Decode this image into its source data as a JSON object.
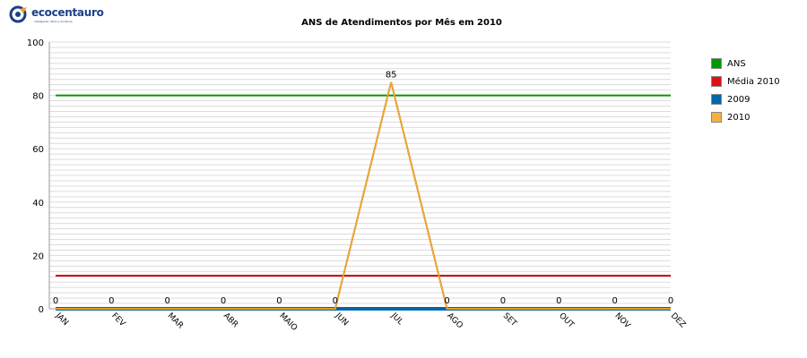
{
  "logo": {
    "text": "ecocentauro",
    "tagline": "inteligente, ética e moderna"
  },
  "chart_data": {
    "type": "line",
    "title": "ANS de Atendimentos por Mês em 2010",
    "xlabel": "",
    "ylabel": "",
    "categories": [
      "JAN",
      "FEV",
      "MAR",
      "ABR",
      "MAIO",
      "JUN",
      "JUL",
      "AGO",
      "SET",
      "OUT",
      "NOV",
      "DEZ"
    ],
    "ylim": [
      0,
      100
    ],
    "yticks": [
      0,
      20,
      40,
      60,
      80,
      100
    ],
    "grid": true,
    "legend_position": "right",
    "series": [
      {
        "name": "ANS",
        "color": "#009900",
        "values": [
          80,
          80,
          80,
          80,
          80,
          80,
          80,
          80,
          80,
          80,
          80,
          80
        ]
      },
      {
        "name": "Média 2010",
        "color": "#cc0000",
        "values": [
          12.4,
          12.4,
          12.4,
          12.4,
          12.4,
          12.4,
          12.4,
          12.4,
          12.4,
          12.4,
          12.4,
          12.4
        ]
      },
      {
        "name": "2009",
        "color": "#0066aa",
        "values": [
          0,
          0,
          0,
          0,
          0,
          0,
          0,
          0,
          0,
          0,
          0,
          0
        ]
      },
      {
        "name": "2010",
        "color": "#f5a623",
        "values": [
          0,
          0,
          0,
          0,
          0,
          0,
          85,
          0,
          0,
          0,
          0,
          0
        ]
      }
    ],
    "data_labels": [
      "0",
      "0",
      "0",
      "0",
      "0",
      "0",
      "85",
      "0",
      "0",
      "0",
      "0",
      "0"
    ],
    "data_labels_lower": [
      "0",
      "0",
      "0",
      "0",
      "0",
      "0",
      "0",
      "0",
      "0",
      "0",
      "0",
      "0"
    ]
  }
}
